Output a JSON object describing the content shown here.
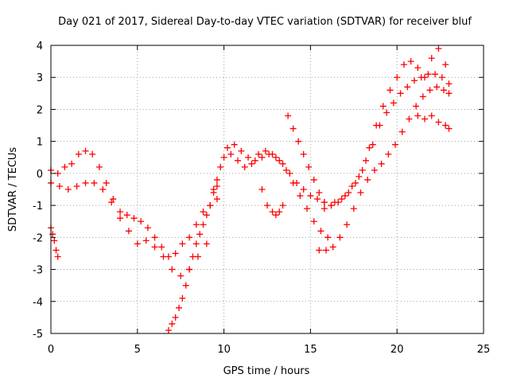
{
  "chart_data": {
    "type": "scatter",
    "title": "Day 021 of 2017, Sidereal Day-to-day VTEC variation (SDTVAR) for receiver bluf",
    "xlabel": "GPS time / hours",
    "ylabel": "SDTVAR / TECUs",
    "xlim": [
      0,
      25
    ],
    "ylim": [
      -5,
      4
    ],
    "xticks": [
      0,
      5,
      10,
      15,
      20,
      25
    ],
    "yticks": [
      -5,
      -4,
      -3,
      -2,
      -1,
      0,
      1,
      2,
      3,
      4
    ],
    "grid": true,
    "marker": "+",
    "color": "#ff0000",
    "series": [
      {
        "x": [
          0.0,
          0.4,
          0.8,
          1.2,
          1.6,
          2.0,
          2.4,
          2.8,
          3.2,
          3.6,
          4.0,
          4.4,
          4.8,
          5.2,
          5.6,
          6.0,
          6.4,
          6.8,
          7.2,
          7.6,
          8.0,
          8.4,
          8.8,
          9.2,
          9.6
        ],
        "y": [
          0.1,
          0.0,
          0.2,
          0.3,
          0.6,
          0.7,
          0.6,
          0.2,
          -0.3,
          -0.8,
          -1.2,
          -1.3,
          -1.4,
          -1.5,
          -1.7,
          -2.0,
          -2.3,
          -2.6,
          -2.5,
          -2.2,
          -2.0,
          -1.6,
          -1.2,
          -1.0,
          -0.8
        ]
      },
      {
        "x": [
          0.0,
          0.5,
          1.0,
          1.5,
          2.0,
          2.5,
          3.0,
          3.5,
          4.0,
          4.5,
          5.0,
          5.5,
          6.0,
          6.5,
          7.0,
          7.5,
          8.0,
          8.5,
          9.0
        ],
        "y": [
          -0.3,
          -0.4,
          -0.5,
          -0.4,
          -0.3,
          -0.3,
          -0.5,
          -0.9,
          -1.4,
          -1.8,
          -2.2,
          -2.1,
          -2.3,
          -2.6,
          -3.0,
          -3.2,
          -3.0,
          -2.6,
          -2.2
        ]
      },
      {
        "x": [
          0.0,
          0.1,
          0.2,
          0.3,
          0.4
        ],
        "y": [
          -1.7,
          -1.9,
          -2.1,
          -2.4,
          -2.6
        ]
      },
      {
        "x": [
          6.8,
          7.0,
          7.2,
          7.4,
          7.6,
          7.8,
          8.0,
          8.2,
          8.4,
          8.6,
          8.8,
          9.0,
          9.2,
          9.4,
          9.6
        ],
        "y": [
          -4.9,
          -4.7,
          -4.5,
          -4.2,
          -3.9,
          -3.5,
          -3.0,
          -2.6,
          -2.2,
          -1.9,
          -1.6,
          -1.3,
          -1.0,
          -0.6,
          -0.4
        ]
      },
      {
        "x": [
          9.4,
          9.8,
          10.2,
          10.6,
          11.0,
          11.4,
          11.8,
          12.2,
          12.6,
          13.0,
          13.4,
          13.8,
          14.2,
          14.6,
          15.0,
          15.4,
          15.8,
          16.2
        ],
        "y": [
          -0.5,
          0.2,
          0.8,
          0.9,
          0.7,
          0.5,
          0.4,
          0.5,
          0.6,
          0.5,
          0.3,
          0.0,
          -0.3,
          -0.5,
          -0.7,
          -0.8,
          -0.9,
          -1.0
        ]
      },
      {
        "x": [
          9.6,
          10.0,
          10.4,
          10.8,
          11.2,
          11.6,
          12.0,
          12.4,
          12.8,
          13.2,
          13.6,
          14.0,
          14.4,
          14.8,
          15.2,
          15.6,
          16.0
        ],
        "y": [
          -0.2,
          0.5,
          0.6,
          0.4,
          0.2,
          0.3,
          0.6,
          0.7,
          0.6,
          0.4,
          0.1,
          -0.3,
          -0.7,
          -1.1,
          -1.5,
          -1.8,
          -2.0
        ]
      },
      {
        "x": [
          12.2,
          12.5,
          12.8,
          13.0,
          13.2,
          13.4
        ],
        "y": [
          -0.5,
          -1.0,
          -1.2,
          -1.3,
          -1.2,
          -1.0
        ]
      },
      {
        "x": [
          13.7,
          14.0,
          14.3,
          14.6,
          14.9,
          15.2,
          15.5,
          15.8
        ],
        "y": [
          1.8,
          1.4,
          1.0,
          0.6,
          0.2,
          -0.2,
          -0.6,
          -0.9
        ]
      },
      {
        "x": [
          15.5,
          15.9,
          16.3,
          16.7,
          17.1,
          17.5,
          17.9,
          18.3,
          18.7,
          19.1,
          19.5,
          19.9,
          20.3,
          20.7,
          21.1,
          21.5,
          21.9,
          22.3,
          22.7,
          23.0
        ],
        "y": [
          -2.4,
          -2.4,
          -2.3,
          -2.0,
          -1.6,
          -1.1,
          -0.6,
          -0.2,
          0.1,
          0.3,
          0.6,
          0.9,
          1.3,
          1.7,
          2.1,
          2.4,
          2.6,
          2.7,
          2.6,
          2.5
        ]
      },
      {
        "x": [
          15.8,
          16.2,
          16.6,
          17.0,
          17.4,
          17.8,
          18.2,
          18.6,
          19.0,
          19.4,
          19.8,
          20.2,
          20.6,
          21.0,
          21.4,
          21.8,
          22.2,
          22.6,
          23.0
        ],
        "y": [
          -1.1,
          -1.0,
          -0.9,
          -0.7,
          -0.4,
          -0.1,
          0.4,
          0.9,
          1.5,
          1.9,
          2.2,
          2.5,
          2.7,
          2.9,
          3.0,
          3.1,
          3.1,
          3.0,
          2.8
        ]
      },
      {
        "x": [
          16.4,
          16.8,
          17.2,
          17.6,
          18.0,
          18.4,
          18.8,
          19.2,
          19.6,
          20.0,
          20.4,
          20.8,
          21.2,
          21.6,
          22.0,
          22.4,
          22.8
        ],
        "y": [
          -0.9,
          -0.8,
          -0.6,
          -0.3,
          0.1,
          0.8,
          1.5,
          2.1,
          2.6,
          3.0,
          3.4,
          3.5,
          3.3,
          3.0,
          3.6,
          3.9,
          3.4
        ]
      },
      {
        "x": [
          21.2,
          21.6,
          22.0,
          22.4,
          22.8,
          23.0
        ],
        "y": [
          1.8,
          1.7,
          1.8,
          1.6,
          1.5,
          1.4
        ]
      }
    ]
  }
}
